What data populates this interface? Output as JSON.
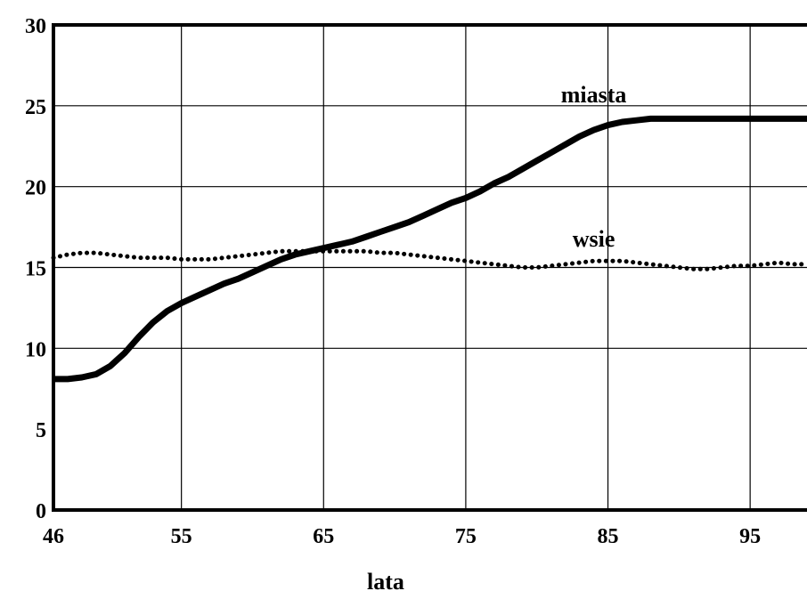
{
  "chart_data": {
    "type": "line",
    "title": "",
    "xlabel": "lata",
    "ylabel": "",
    "xlim": [
      46,
      99
    ],
    "ylim": [
      0,
      30
    ],
    "x_ticks": [
      46,
      55,
      65,
      75,
      85,
      95
    ],
    "y_ticks": [
      0,
      5,
      10,
      15,
      20,
      25,
      30
    ],
    "x_gridlines": [
      55,
      65,
      75,
      85,
      95
    ],
    "y_gridlines": [
      10,
      15,
      20,
      25
    ],
    "grid": true,
    "legend": "none",
    "series": [
      {
        "name": "miasta",
        "style": "solid",
        "color": "#000000",
        "points": [
          [
            46,
            8.1
          ],
          [
            47,
            8.1
          ],
          [
            48,
            8.2
          ],
          [
            49,
            8.4
          ],
          [
            50,
            8.9
          ],
          [
            51,
            9.7
          ],
          [
            52,
            10.7
          ],
          [
            53,
            11.6
          ],
          [
            54,
            12.3
          ],
          [
            55,
            12.8
          ],
          [
            56,
            13.2
          ],
          [
            57,
            13.6
          ],
          [
            58,
            14.0
          ],
          [
            59,
            14.3
          ],
          [
            60,
            14.7
          ],
          [
            61,
            15.1
          ],
          [
            62,
            15.5
          ],
          [
            63,
            15.8
          ],
          [
            64,
            16.0
          ],
          [
            65,
            16.2
          ],
          [
            66,
            16.4
          ],
          [
            67,
            16.6
          ],
          [
            68,
            16.9
          ],
          [
            69,
            17.2
          ],
          [
            70,
            17.5
          ],
          [
            71,
            17.8
          ],
          [
            72,
            18.2
          ],
          [
            73,
            18.6
          ],
          [
            74,
            19.0
          ],
          [
            75,
            19.3
          ],
          [
            76,
            19.7
          ],
          [
            77,
            20.2
          ],
          [
            78,
            20.6
          ],
          [
            79,
            21.1
          ],
          [
            80,
            21.6
          ],
          [
            81,
            22.1
          ],
          [
            82,
            22.6
          ],
          [
            83,
            23.1
          ],
          [
            84,
            23.5
          ],
          [
            85,
            23.8
          ],
          [
            86,
            24.0
          ],
          [
            87,
            24.1
          ],
          [
            88,
            24.2
          ],
          [
            89,
            24.2
          ],
          [
            92,
            24.2
          ],
          [
            95,
            24.2
          ],
          [
            99,
            24.2
          ]
        ]
      },
      {
        "name": "wsie",
        "style": "dotted",
        "color": "#000000",
        "points": [
          [
            46,
            15.6
          ],
          [
            47,
            15.8
          ],
          [
            48,
            15.9
          ],
          [
            49,
            15.9
          ],
          [
            50,
            15.8
          ],
          [
            51,
            15.7
          ],
          [
            52,
            15.6
          ],
          [
            53,
            15.6
          ],
          [
            54,
            15.6
          ],
          [
            55,
            15.5
          ],
          [
            56,
            15.5
          ],
          [
            57,
            15.5
          ],
          [
            58,
            15.6
          ],
          [
            59,
            15.7
          ],
          [
            60,
            15.8
          ],
          [
            61,
            15.9
          ],
          [
            62,
            16.0
          ],
          [
            63,
            16.0
          ],
          [
            64,
            16.0
          ],
          [
            65,
            16.0
          ],
          [
            66,
            16.0
          ],
          [
            67,
            16.0
          ],
          [
            68,
            16.0
          ],
          [
            69,
            15.9
          ],
          [
            70,
            15.9
          ],
          [
            71,
            15.8
          ],
          [
            72,
            15.7
          ],
          [
            73,
            15.6
          ],
          [
            74,
            15.5
          ],
          [
            75,
            15.4
          ],
          [
            76,
            15.3
          ],
          [
            77,
            15.2
          ],
          [
            78,
            15.1
          ],
          [
            79,
            15.0
          ],
          [
            80,
            15.0
          ],
          [
            81,
            15.1
          ],
          [
            82,
            15.2
          ],
          [
            83,
            15.3
          ],
          [
            84,
            15.4
          ],
          [
            85,
            15.4
          ],
          [
            86,
            15.4
          ],
          [
            87,
            15.3
          ],
          [
            88,
            15.2
          ],
          [
            89,
            15.1
          ],
          [
            90,
            15.0
          ],
          [
            91,
            14.9
          ],
          [
            92,
            14.9
          ],
          [
            93,
            15.0
          ],
          [
            94,
            15.1
          ],
          [
            95,
            15.1
          ],
          [
            96,
            15.2
          ],
          [
            97,
            15.3
          ],
          [
            98,
            15.2
          ],
          [
            99,
            15.2
          ]
        ],
        "label_at": [
          75,
          15.9
        ]
      }
    ],
    "series_label_anchors": {
      "miasta": [
        84,
        25.2
      ],
      "wsie": [
        84,
        16.3
      ]
    }
  }
}
